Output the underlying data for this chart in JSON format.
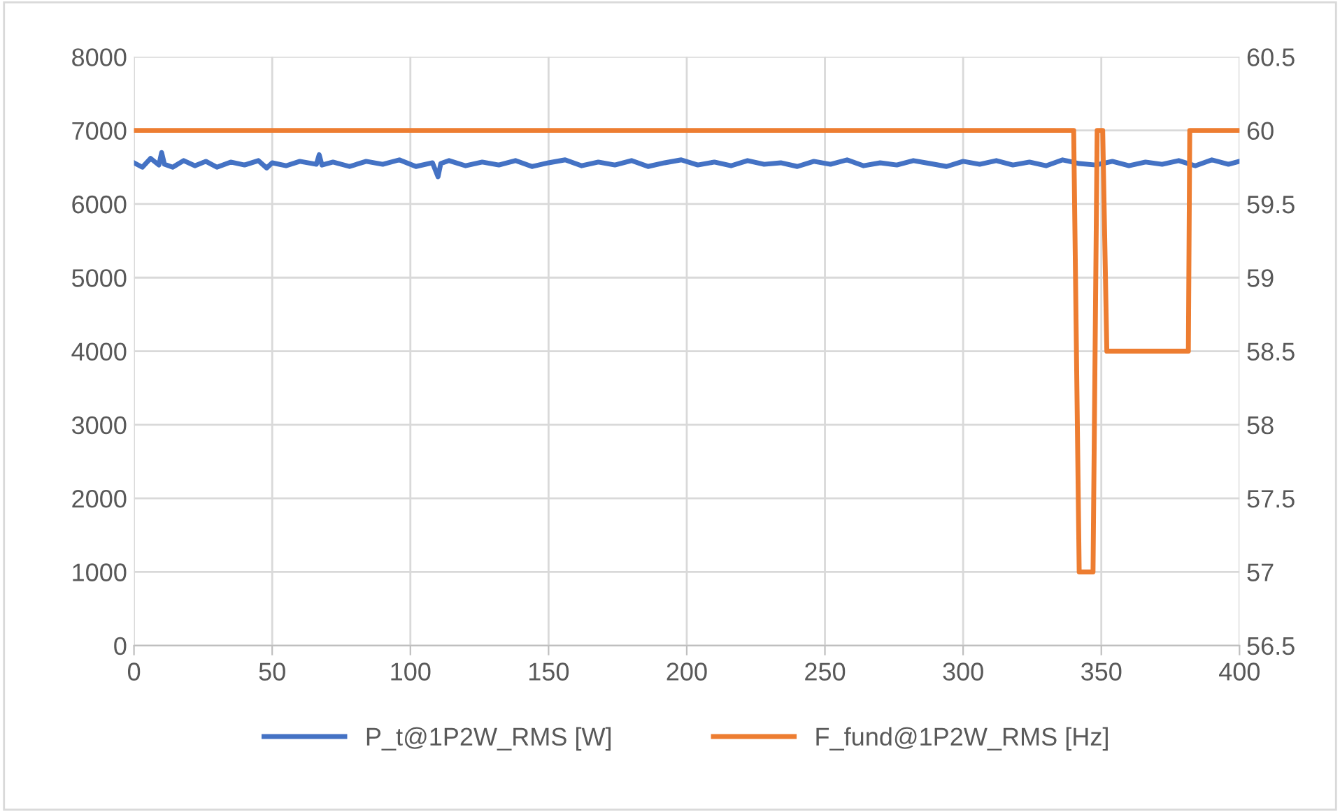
{
  "chart_data": {
    "type": "line",
    "xlim": [
      0,
      400
    ],
    "xticks": [
      0,
      50,
      100,
      150,
      200,
      250,
      300,
      350,
      400
    ],
    "ylim": [
      0,
      8000
    ],
    "yticks": [
      0,
      1000,
      2000,
      3000,
      4000,
      5000,
      6000,
      7000,
      8000
    ],
    "y2lim": [
      56.5,
      60.5
    ],
    "y2ticks": [
      56.5,
      57,
      57.5,
      58,
      58.5,
      59,
      59.5,
      60,
      60.5
    ],
    "grid": true,
    "legend": "bottom",
    "marker": "none",
    "line_style": "solid",
    "series": [
      {
        "name": "P_t@1P2W_RMS [W]",
        "color": "#4472c4",
        "x": [
          0,
          3,
          6,
          9,
          10,
          11,
          14,
          18,
          22,
          26,
          30,
          35,
          40,
          45,
          48,
          50,
          55,
          60,
          66,
          67,
          68,
          72,
          78,
          84,
          90,
          96,
          102,
          108,
          110,
          111,
          114,
          120,
          126,
          132,
          138,
          144,
          150,
          156,
          162,
          168,
          174,
          180,
          186,
          192,
          198,
          204,
          210,
          216,
          222,
          228,
          234,
          240,
          246,
          252,
          258,
          264,
          270,
          276,
          282,
          288,
          294,
          300,
          306,
          312,
          318,
          324,
          330,
          336,
          342,
          348,
          354,
          360,
          366,
          372,
          378,
          384,
          390,
          396,
          400
        ],
        "values": [
          6560,
          6500,
          6620,
          6530,
          6700,
          6540,
          6500,
          6590,
          6520,
          6580,
          6500,
          6570,
          6530,
          6590,
          6490,
          6560,
          6520,
          6580,
          6540,
          6670,
          6530,
          6570,
          6510,
          6580,
          6540,
          6600,
          6510,
          6560,
          6370,
          6550,
          6590,
          6520,
          6570,
          6530,
          6590,
          6510,
          6560,
          6600,
          6520,
          6570,
          6530,
          6590,
          6510,
          6560,
          6600,
          6530,
          6570,
          6520,
          6590,
          6540,
          6560,
          6510,
          6580,
          6540,
          6600,
          6520,
          6560,
          6530,
          6590,
          6550,
          6510,
          6580,
          6540,
          6590,
          6530,
          6570,
          6520,
          6600,
          6550,
          6530,
          6580,
          6520,
          6570,
          6540,
          6590,
          6520,
          6600,
          6540,
          6580
        ]
      },
      {
        "name": "F_fund@1P2W_RMS [Hz]",
        "color": "#ed7d31",
        "axis": "y2",
        "x": [
          0,
          340,
          342,
          347,
          348.5,
          350.5,
          352,
          381.5,
          382,
          400
        ],
        "values": [
          60,
          60,
          57,
          57,
          60,
          60,
          58.5,
          58.5,
          60,
          60
        ]
      }
    ]
  }
}
